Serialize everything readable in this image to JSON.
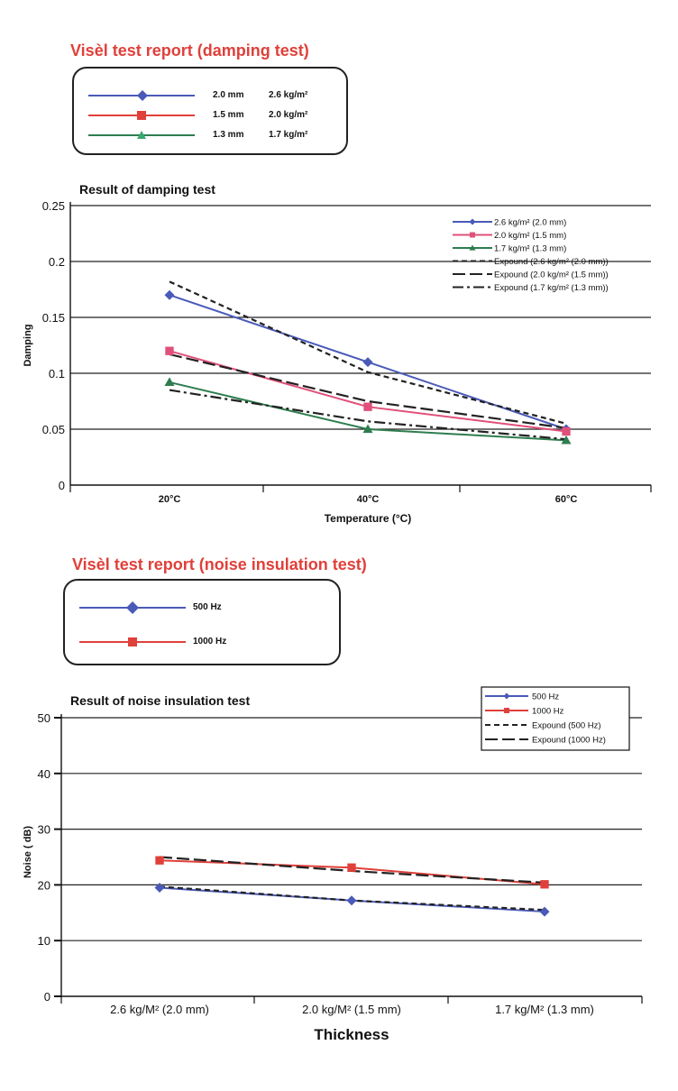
{
  "report1": {
    "title": "Visèl test report (damping test)",
    "legend": [
      {
        "thickness": "2.0 mm",
        "density": "2.6 kg/m²",
        "color": "#4a5ab8",
        "marker": "diamond"
      },
      {
        "thickness": "1.5 mm",
        "density": "2.0 kg/m²",
        "color": "#e0403a",
        "marker": "square"
      },
      {
        "thickness": "1.3 mm",
        "density": "1.7 kg/m²",
        "color": "#2e7d4f",
        "marker": "triangle"
      }
    ]
  },
  "report2": {
    "title": "Visèl test report (noise insulation test)",
    "legend": [
      {
        "label": "500 Hz",
        "color": "#4a5ab8",
        "marker": "diamond"
      },
      {
        "label": "1000 Hz",
        "color": "#e0403a",
        "marker": "square"
      }
    ]
  },
  "chart_data": [
    {
      "type": "line",
      "title": "Result of damping test",
      "xlabel": "Temperature (°C)",
      "ylabel": "Damping",
      "categories": [
        "20°C",
        "40°C",
        "60°C"
      ],
      "yticks": [
        "0",
        "0.05",
        "0.1",
        "0.15",
        "0.2",
        "0.25"
      ],
      "ylim": [
        0,
        0.25
      ],
      "grid": "horizontal",
      "legend_position": "top-right",
      "series": [
        {
          "name": "2.6 kg/m² (2.0 mm)",
          "values": [
            0.17,
            0.11,
            0.05
          ],
          "color": "#4a5ab8",
          "marker": "diamond"
        },
        {
          "name": "2.0 kg/m² (1.5 mm)",
          "values": [
            0.12,
            0.07,
            0.048
          ],
          "color": "#e0507a",
          "marker": "square"
        },
        {
          "name": "1.7 kg/m² (1.3 mm)",
          "values": [
            0.092,
            0.05,
            0.04
          ],
          "color": "#2e7d4f",
          "marker": "triangle"
        }
      ],
      "trendlines": [
        {
          "name": "Expound (2.6 kg/m² (2.0 mm))",
          "values": [
            0.182,
            0.101,
            0.055
          ],
          "dash": "short"
        },
        {
          "name": "Expound (2.0 kg/m² (1.5 mm))",
          "values": [
            0.117,
            0.075,
            0.051
          ],
          "dash": "long"
        },
        {
          "name": "Expound (1.7 kg/m² (1.3 mm))",
          "values": [
            0.085,
            0.057,
            0.041
          ],
          "dash": "dashdot"
        }
      ]
    },
    {
      "type": "line",
      "title": "Result of noise insulation test",
      "xlabel": "Thickness",
      "ylabel": "Noise ( dB)",
      "categories": [
        "2.6 kg/M² (2.0 mm)",
        "2.0 kg/M² (1.5 mm)",
        "1.7 kg/M² (1.3 mm)"
      ],
      "yticks": [
        "0",
        "10",
        "20",
        "30",
        "40",
        "50"
      ],
      "ylim": [
        0,
        50
      ],
      "grid": "horizontal",
      "legend_position": "top-right",
      "series": [
        {
          "name": "500 Hz",
          "values": [
            19.5,
            17.2,
            15.2
          ],
          "color": "#4a5ab8",
          "marker": "diamond"
        },
        {
          "name": "1000 Hz",
          "values": [
            24.4,
            23.1,
            20.1
          ],
          "color": "#e0403a",
          "marker": "square"
        }
      ],
      "trendlines": [
        {
          "name": "Expound (500 Hz)",
          "values": [
            19.7,
            17.2,
            15.5
          ],
          "dash": "short"
        },
        {
          "name": "Expound (1000 Hz)",
          "values": [
            25.0,
            22.5,
            20.4
          ],
          "dash": "long"
        }
      ]
    }
  ]
}
